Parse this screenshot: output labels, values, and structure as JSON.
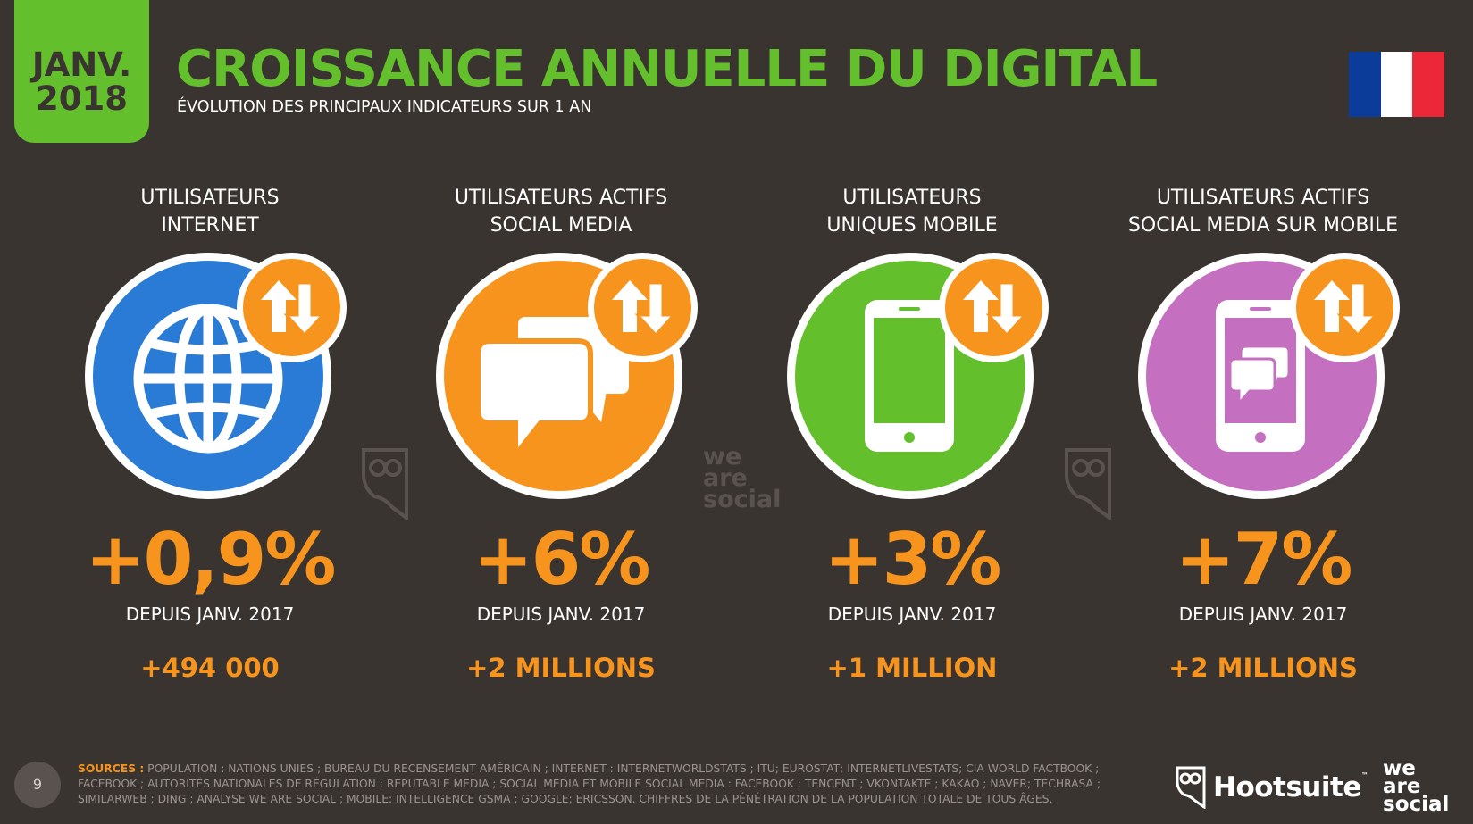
{
  "header": {
    "date_month": "JANV.",
    "date_year": "2018",
    "title": "CROISSANCE ANNUELLE DU DIGITAL",
    "subtitle": "ÉVOLUTION DES PRINCIPAUX INDICATEURS SUR 1 AN"
  },
  "flag": {
    "icon": "france-flag-icon",
    "colors": [
      "#0b3c99",
      "#ffffff",
      "#ec2838"
    ]
  },
  "colors": {
    "background": "#3a3431",
    "green": "#64bf2c",
    "orange": "#f7941d",
    "blue": "#2a7bd6",
    "purple": "#c56fc1"
  },
  "indicators": [
    {
      "label": "UTILISATEURS\nINTERNET",
      "icon": "globe-icon",
      "color": "#2a7bd6",
      "change": "+0,9%",
      "since": "DEPUIS JANV. 2017",
      "absolute": "+494 000"
    },
    {
      "label": "UTILISATEURS ACTIFS\nSOCIAL MEDIA",
      "icon": "chat-bubbles-icon",
      "color": "#f7941d",
      "change": "+6%",
      "since": "DEPUIS JANV. 2017",
      "absolute": "+2 MILLIONS"
    },
    {
      "label": "UTILISATEURS\nUNIQUES MOBILE",
      "icon": "smartphone-icon",
      "color": "#64bf2c",
      "change": "+3%",
      "since": "DEPUIS JANV. 2017",
      "absolute": "+1 MILLION"
    },
    {
      "label": "UTILISATEURS ACTIFS\nSOCIAL MEDIA SUR MOBILE",
      "icon": "mobile-chat-icon",
      "color": "#c56fc1",
      "change": "+7%",
      "since": "DEPUIS JANV. 2017",
      "absolute": "+2 MILLIONS"
    }
  ],
  "badge_icon": "up-down-arrows-icon",
  "watermarks": {
    "center_text": "we\nare\nsocial",
    "owl_icon": "hootsuite-owl-icon"
  },
  "footer": {
    "page_number": "9",
    "sources_label": "SOURCES :",
    "sources_text": "POPULATION : NATIONS UNIES ; BUREAU DU RECENSEMENT AMÉRICAIN ; INTERNET : INTERNETWORLDSTATS ; ITU; EUROSTAT; INTERNETLIVESTATS; CIA WORLD FACTBOOK ; FACEBOOK ; AUTORITÉS NATIONALES DE RÉGULATION ; REPUTABLE MEDIA ; SOCIAL MEDIA ET MOBILE SOCIAL MEDIA : FACEBOOK ; TENCENT ; VKONTAKTE ; KAKAO ; NAVER; TECHRASA ; SIMILARWEB ; DING ; ANALYSE WE ARE SOCIAL ; MOBILE: INTELLIGENCE GSMA ; GOOGLE; ERICSSON. CHIFFRES DE LA PÉNÉTRATION DE LA POPULATION TOTALE DE TOUS ÂGES.",
    "hootsuite_label": "Hootsuite",
    "hootsuite_tm": "™",
    "was_logo": "we\nare\nsocial"
  }
}
